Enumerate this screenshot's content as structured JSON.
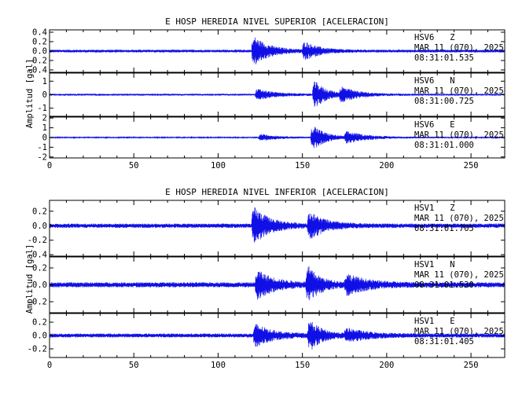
{
  "chart_data": [
    {
      "type": "line",
      "title": "E HOSP HEREDIA NIVEL SUPERIOR [ACELERACION]",
      "ylabel": "Amplitud [gal]",
      "xlim": [
        0,
        270
      ],
      "x_ticks": [
        0,
        50,
        100,
        150,
        200,
        250
      ],
      "traces": [
        {
          "station": "HSV6",
          "component": "Z",
          "date": "MAR 11 (070), 2025",
          "time": "08:31:01.535",
          "ylim": [
            -0.45,
            0.45
          ],
          "y_ticks": [
            0.4,
            0.2,
            0.0,
            -0.2,
            -0.4
          ],
          "y_tick_labels": [
            "0.4",
            "0.2",
            "0.0",
            "-0.2",
            "-0.4"
          ],
          "noise": 0.03,
          "bursts": [
            [
              120,
              0.34,
              9
            ],
            [
              150,
              0.22,
              8
            ]
          ]
        },
        {
          "station": "HSV6",
          "component": "N",
          "date": "MAR 11 (070), 2025",
          "time": "08:31:00.725",
          "ylim": [
            -1.6,
            1.6
          ],
          "y_ticks": [
            1,
            0,
            -1
          ],
          "y_tick_labels": [
            "1",
            "0",
            "-1"
          ],
          "noise": 0.07,
          "bursts": [
            [
              122,
              0.45,
              10
            ],
            [
              156,
              1.2,
              7
            ],
            [
              172,
              0.55,
              10
            ]
          ]
        },
        {
          "station": "HSV6",
          "component": "E",
          "date": "MAR 11 (070), 2025",
          "time": "08:31:01.000",
          "ylim": [
            -2.1,
            2.1
          ],
          "y_ticks": [
            2,
            1,
            0,
            -1,
            -2
          ],
          "y_tick_labels": [
            "2",
            "1",
            "0",
            "-1",
            "-2"
          ],
          "noise": 0.07,
          "bursts": [
            [
              124,
              0.35,
              10
            ],
            [
              155,
              1.6,
              7
            ],
            [
              175,
              0.6,
              12
            ]
          ]
        }
      ]
    },
    {
      "type": "line",
      "title": "E HOSP HEREDIA NIVEL INFERIOR [ACELERACION]",
      "ylabel": "Amplitud [gal]",
      "xlim": [
        0,
        270
      ],
      "x_ticks": [
        0,
        50,
        100,
        150,
        200,
        250
      ],
      "traces": [
        {
          "station": "HSV1",
          "component": "Z",
          "date": "MAR 11 (070), 2025",
          "time": "08:31:01.705",
          "ylim": [
            -0.42,
            0.35
          ],
          "y_ticks": [
            0.2,
            0.0,
            -0.2,
            -0.4
          ],
          "y_tick_labels": [
            "0.2",
            "0.0",
            "-0.2",
            "-0.4"
          ],
          "noise": 0.03,
          "bursts": [
            [
              120,
              0.28,
              9
            ],
            [
              153,
              0.2,
              9
            ]
          ]
        },
        {
          "station": "HSV1",
          "component": "N",
          "date": "MAR 11 (070), 2025",
          "time": "08:31:01.530",
          "ylim": [
            -0.33,
            0.33
          ],
          "y_ticks": [
            0.2,
            0.0,
            -0.2
          ],
          "y_tick_labels": [
            "0.2",
            "0.0",
            "-0.2"
          ],
          "noise": 0.03,
          "bursts": [
            [
              122,
              0.18,
              10
            ],
            [
              152,
              0.24,
              7
            ],
            [
              175,
              0.12,
              12
            ]
          ]
        },
        {
          "station": "HSV1",
          "component": "E",
          "date": "MAR 11 (070), 2025",
          "time": "08:31:01.405",
          "ylim": [
            -0.33,
            0.33
          ],
          "y_ticks": [
            0.2,
            0.0,
            -0.2
          ],
          "y_tick_labels": [
            "0.2",
            "0.0",
            "-0.2"
          ],
          "noise": 0.03,
          "bursts": [
            [
              121,
              0.18,
              10
            ],
            [
              153,
              0.26,
              7
            ],
            [
              175,
              0.1,
              12
            ]
          ]
        }
      ]
    }
  ]
}
